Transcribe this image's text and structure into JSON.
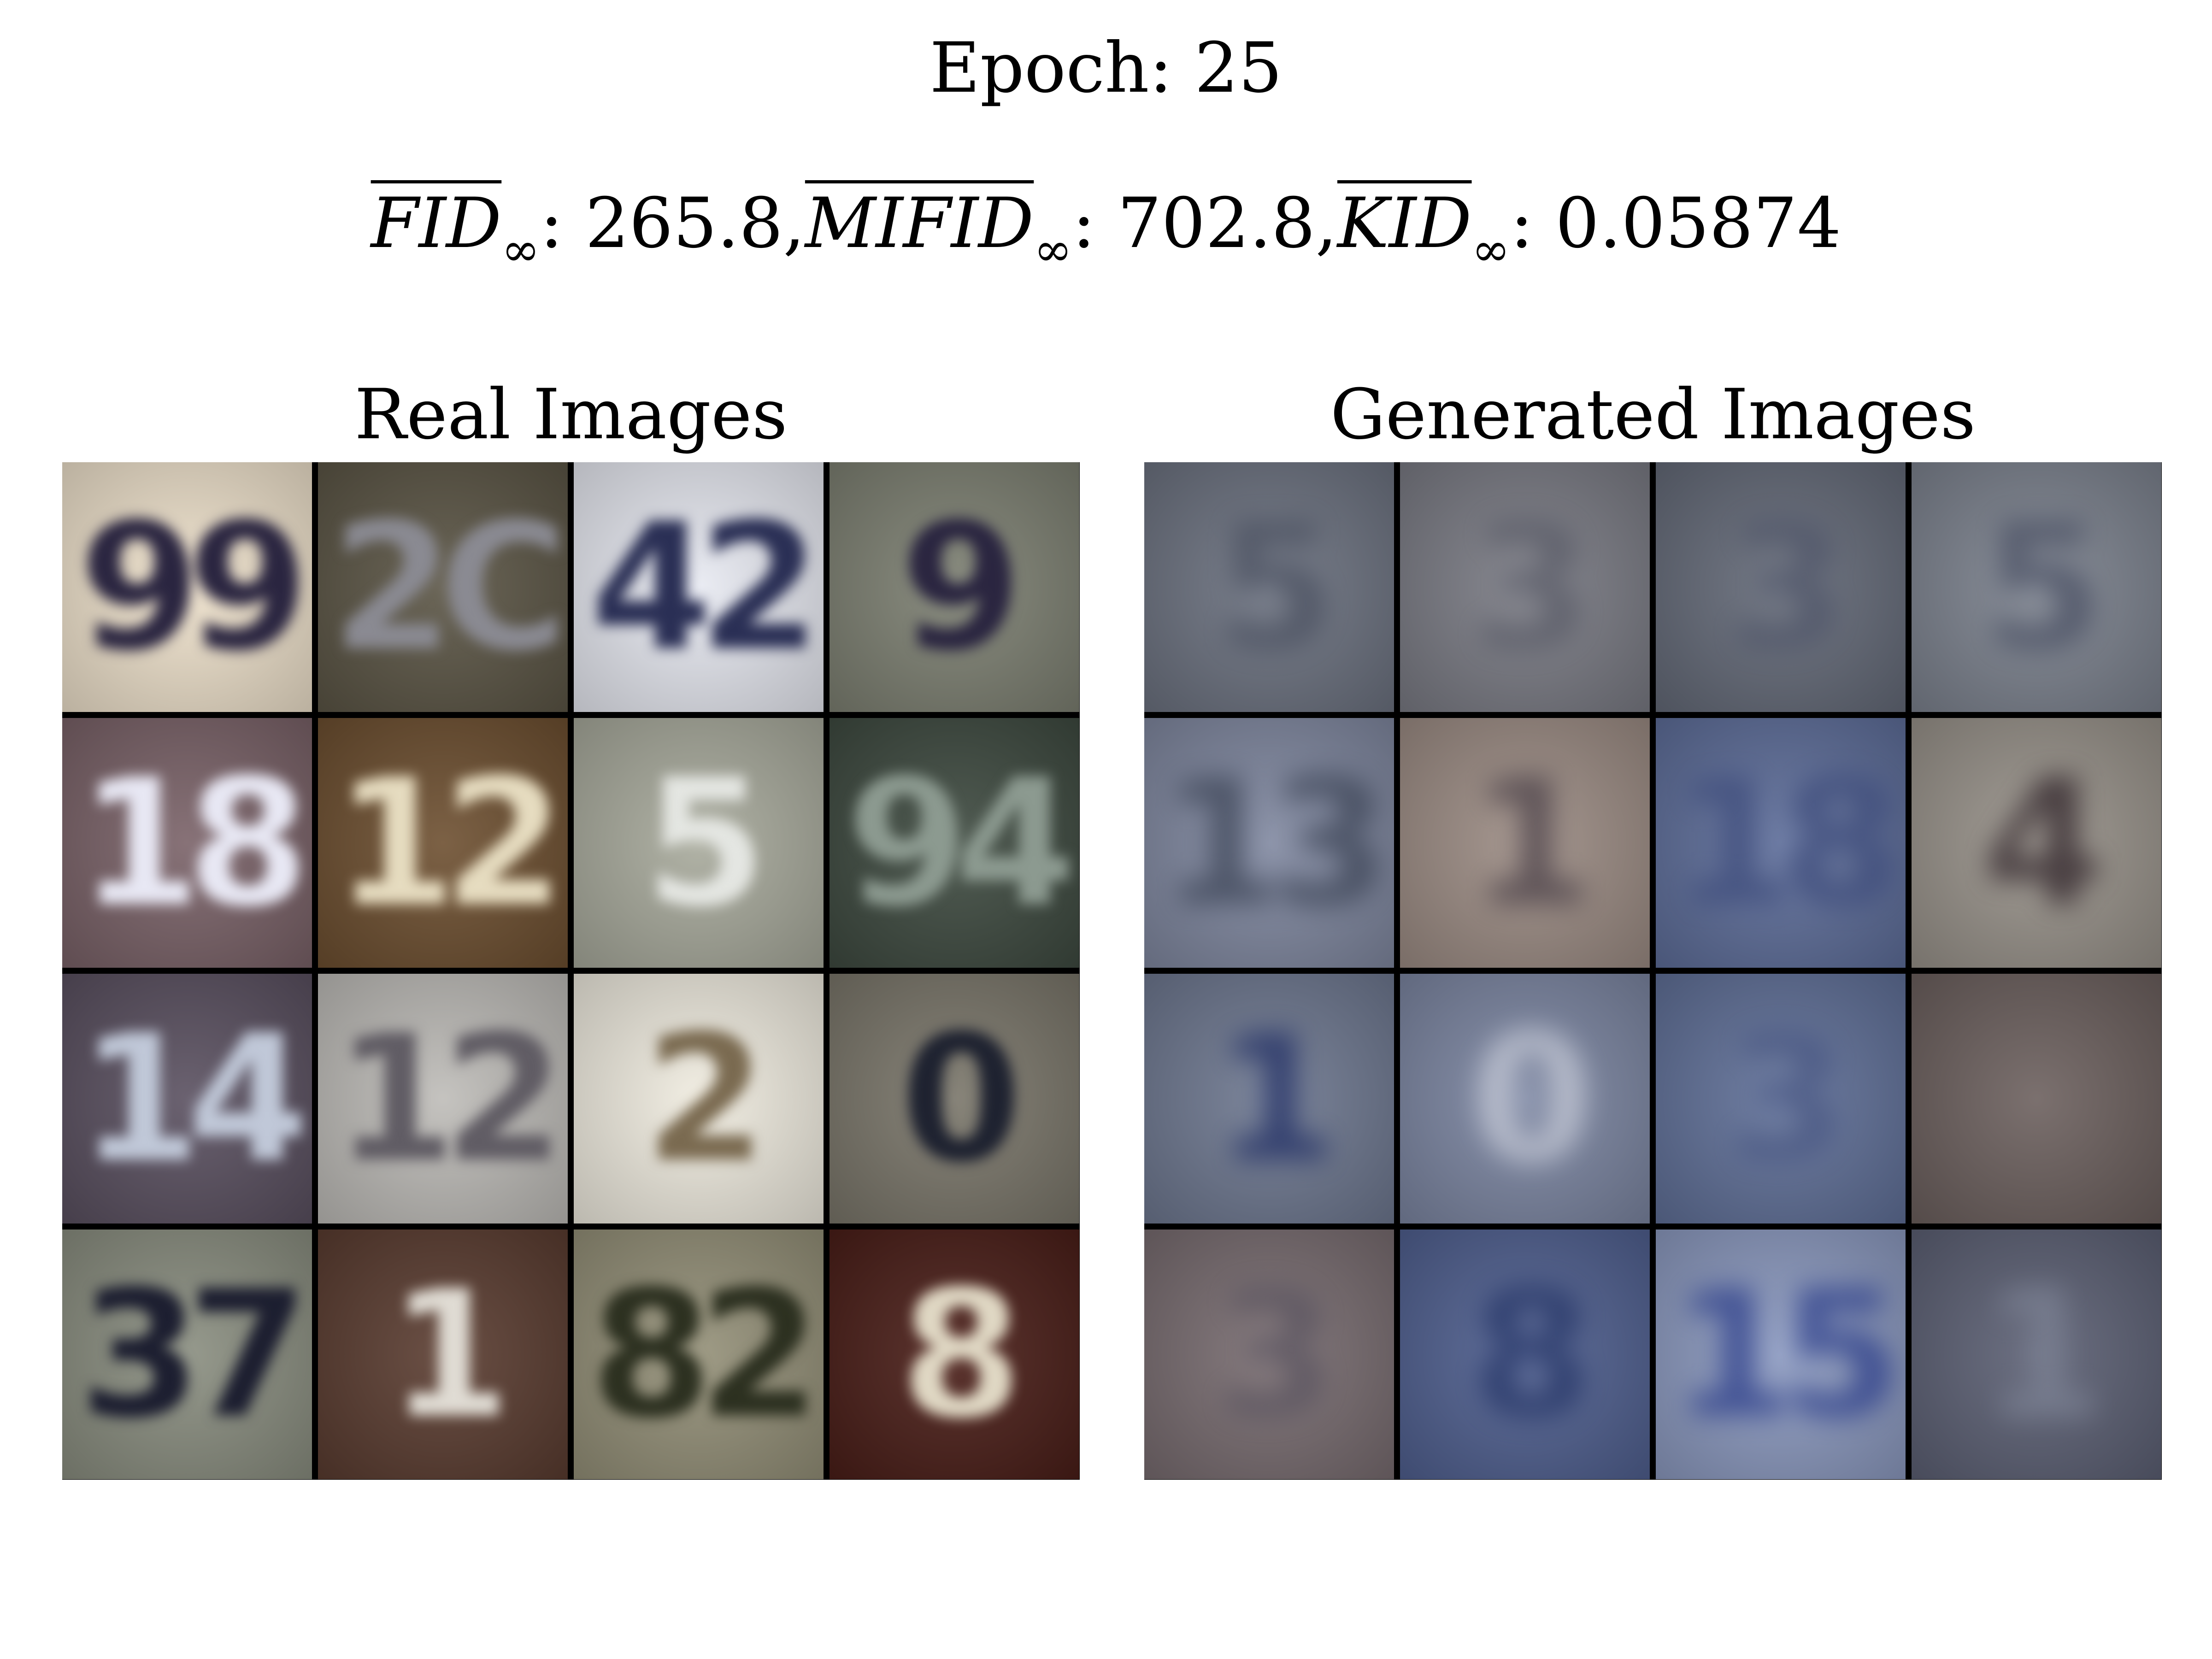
{
  "header": {
    "epoch_text": "Epoch: 25",
    "metrics": [
      {
        "name": "FID",
        "subscript": "∞",
        "value": ": 265.8, "
      },
      {
        "name": "MIFID",
        "subscript": "∞",
        "value": ": 702.8, "
      },
      {
        "name": "KID",
        "subscript": "∞",
        "value": ": 0.05874"
      }
    ]
  },
  "panels": {
    "real": {
      "title": "Real Images",
      "cells": [
        {
          "digit": "99",
          "bg": "#efe2cc",
          "fg": "#2a2540"
        },
        {
          "digit": "2C",
          "bg": "#5b5545",
          "fg": "#8a8a92"
        },
        {
          "digit": "42",
          "bg": "#e8eaf2",
          "fg": "#2a2f55"
        },
        {
          "digit": "9",
          "bg": "#7d8072",
          "fg": "#2a2540"
        },
        {
          "digit": "18",
          "bg": "#7a6268",
          "fg": "#e8e8f4"
        },
        {
          "digit": "12",
          "bg": "#6d4f30",
          "fg": "#e6dcc0"
        },
        {
          "digit": "5",
          "bg": "#a8aa9c",
          "fg": "#e4e6e2"
        },
        {
          "digit": "94",
          "bg": "#3e4a40",
          "fg": "#8c9a90"
        },
        {
          "digit": "14",
          "bg": "#5a5060",
          "fg": "#c0c8d8"
        },
        {
          "digit": "12",
          "bg": "#bebcb8",
          "fg": "#605c64"
        },
        {
          "digit": "2",
          "bg": "#f0ece0",
          "fg": "#7a6a50"
        },
        {
          "digit": "0",
          "bg": "#7a766a",
          "fg": "#1e2230"
        },
        {
          "digit": "37",
          "bg": "#8a8e80",
          "fg": "#1c1e30"
        },
        {
          "digit": "1",
          "bg": "#5a3c30",
          "fg": "#e0dcd4"
        },
        {
          "digit": "82",
          "bg": "#949078",
          "fg": "#2c3020"
        },
        {
          "digit": "8",
          "bg": "#4a1e18",
          "fg": "#e0d8c4"
        }
      ]
    },
    "generated": {
      "title": "Generated Images",
      "cells": [
        {
          "digit": "5",
          "bg": "#6c7280",
          "fg": "#4a5060"
        },
        {
          "digit": "3",
          "bg": "#7a7b84",
          "fg": "#5a5c68"
        },
        {
          "digit": "3",
          "bg": "#646a78",
          "fg": "#50566a"
        },
        {
          "digit": "5",
          "bg": "#7c828e",
          "fg": "#4a5064"
        },
        {
          "digit": "13",
          "bg": "#8088a0",
          "fg": "#3c4456"
        },
        {
          "digit": "1",
          "bg": "#9c8c84",
          "fg": "#4a4048"
        },
        {
          "digit": "18",
          "bg": "#5e6e9a",
          "fg": "#3e4c7c"
        },
        {
          "digit": "4",
          "bg": "#98928a",
          "fg": "#2e2228"
        },
        {
          "digit": "1",
          "bg": "#6e7890",
          "fg": "#1e2c64"
        },
        {
          "digit": "0",
          "bg": "#7c86a2",
          "fg": "#c8ccd8"
        },
        {
          "digit": "3",
          "bg": "#607098",
          "fg": "#4a5884"
        },
        {
          "digit": "",
          "bg": "#6c605e",
          "fg": "#5a5050"
        },
        {
          "digit": "3",
          "bg": "#786c70",
          "fg": "#5a5460"
        },
        {
          "digit": "8",
          "bg": "#506090",
          "fg": "#243466"
        },
        {
          "digit": "15",
          "bg": "#8c9ac0",
          "fg": "#2a3c8a"
        },
        {
          "digit": "1",
          "bg": "#5c6074",
          "fg": "#7c8294"
        }
      ]
    }
  }
}
